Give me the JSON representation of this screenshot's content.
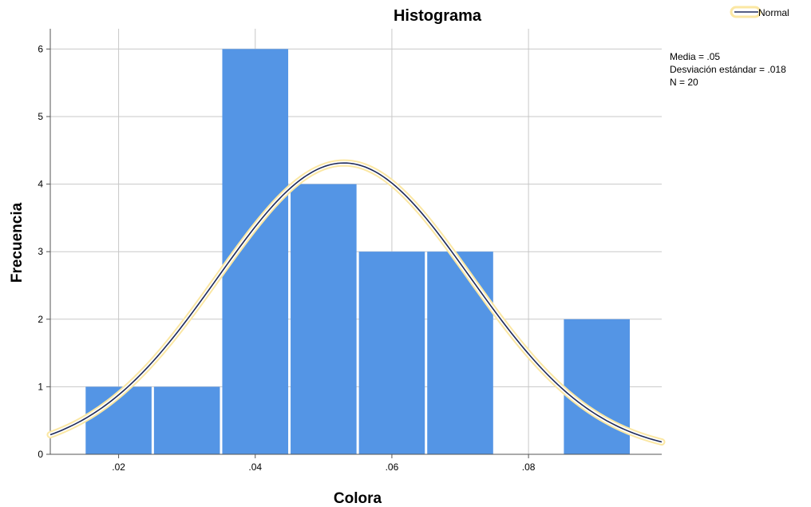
{
  "chart_data": {
    "type": "bar",
    "title": "Histograma",
    "xlabel": "Colora",
    "ylabel": "Frecuencia",
    "bin_width": 0.01,
    "bins": [
      {
        "start": 0.015,
        "end": 0.025,
        "count": 1
      },
      {
        "start": 0.025,
        "end": 0.035,
        "count": 1
      },
      {
        "start": 0.035,
        "end": 0.045,
        "count": 6
      },
      {
        "start": 0.045,
        "end": 0.055,
        "count": 4
      },
      {
        "start": 0.055,
        "end": 0.065,
        "count": 3
      },
      {
        "start": 0.065,
        "end": 0.075,
        "count": 3
      },
      {
        "start": 0.075,
        "end": 0.085,
        "count": 0
      },
      {
        "start": 0.085,
        "end": 0.095,
        "count": 2
      }
    ],
    "xlim": [
      0.01,
      0.0995
    ],
    "ylim": [
      0,
      6.3
    ],
    "x_ticks": [
      0.02,
      0.04,
      0.06,
      0.08
    ],
    "x_tick_labels": [
      ".02",
      ".04",
      ".06",
      ".08"
    ],
    "y_ticks": [
      0,
      1,
      2,
      3,
      4,
      5,
      6
    ],
    "y_tick_labels": [
      "0",
      "1",
      "2",
      "3",
      "4",
      "5",
      "6"
    ],
    "grid": true,
    "normal_curve": {
      "name": "Normal",
      "mean": 0.053,
      "sd": 0.0185
    },
    "stats": [
      "Media = .05",
      "Desviación estándar = .018",
      "N = 20"
    ],
    "legend": {
      "position": "top-right",
      "entries": [
        "Normal"
      ]
    },
    "colors": {
      "bar": "#5495e5",
      "curve": "#1e2a5a",
      "curve_glow": "#fbe7a3"
    }
  }
}
